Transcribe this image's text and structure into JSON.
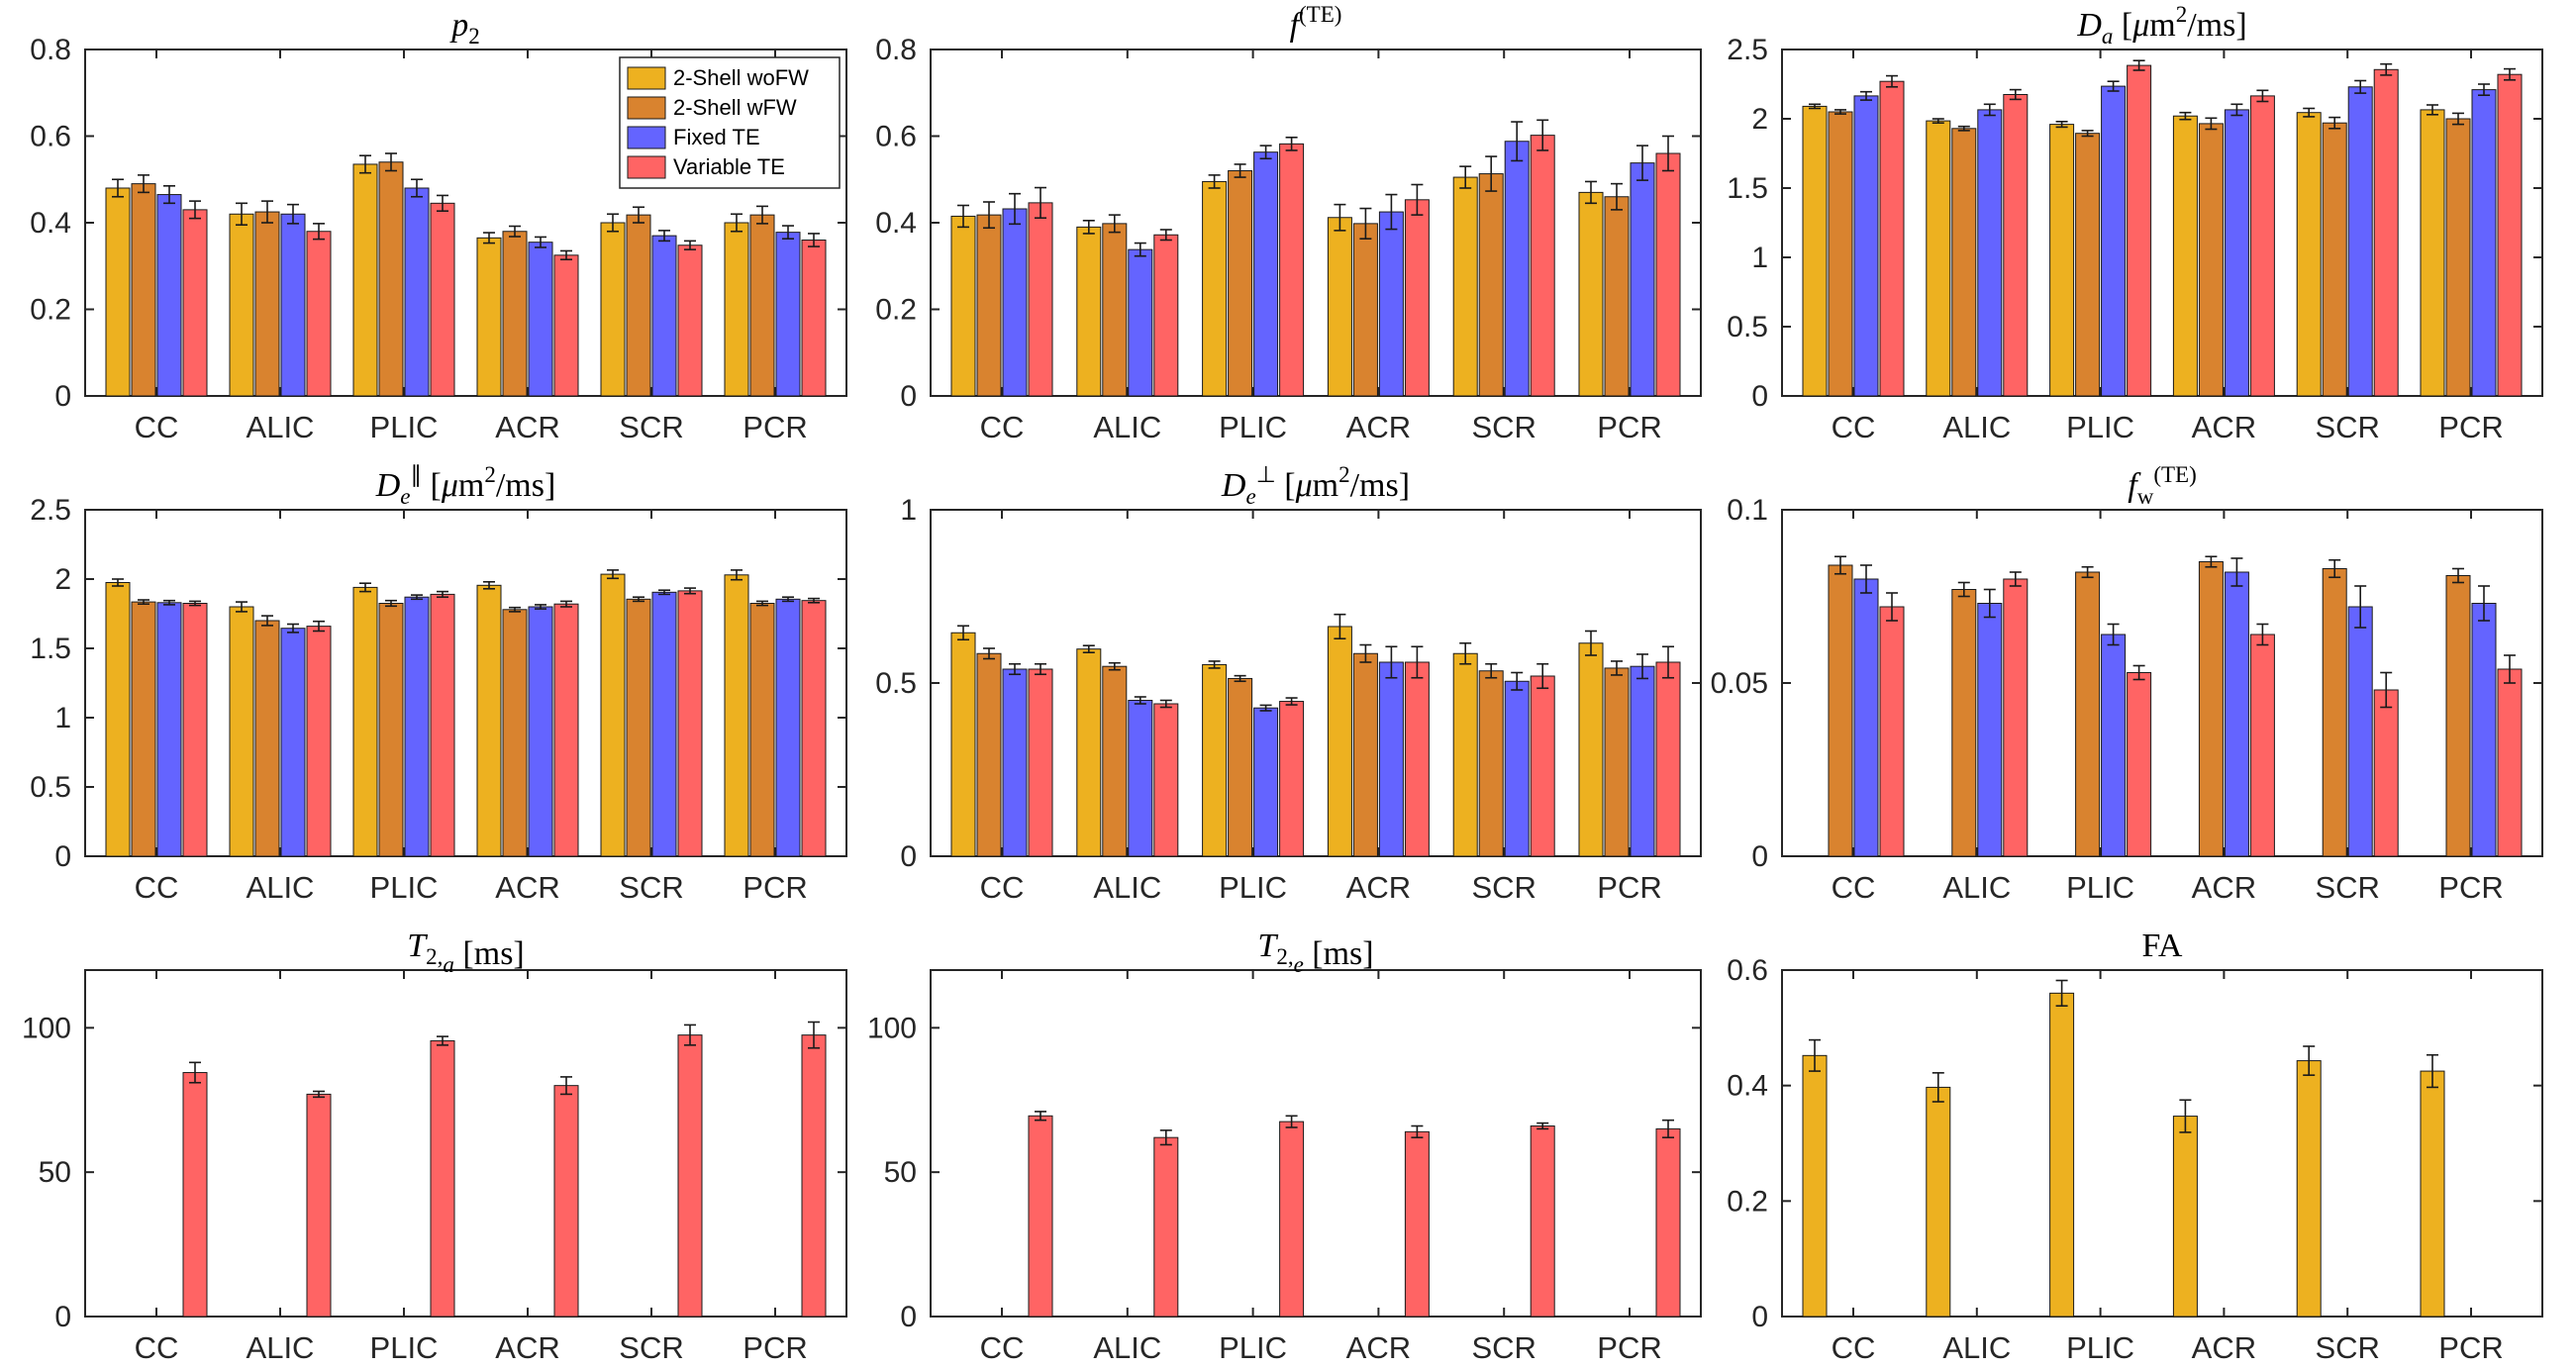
{
  "figure": {
    "layout": "3x3 grid of grouped bar charts"
  },
  "legend": {
    "placement": "top-right of first panel",
    "entries": [
      {
        "label": "2-Shell woFW",
        "color": "#EDB120"
      },
      {
        "label": "2-Shell wFW",
        "color": "#D9832F"
      },
      {
        "label": "Fixed TE",
        "color": "#6464FF"
      },
      {
        "label": "Variable TE",
        "color": "#FF6464"
      }
    ]
  },
  "chart_data": [
    {
      "type": "bar",
      "id": "p2",
      "title": [
        {
          "t": "p",
          "style": "it"
        },
        {
          "t": "2",
          "style": "sub"
        }
      ],
      "categories": [
        "CC",
        "ALIC",
        "PLIC",
        "ACR",
        "SCR",
        "PCR"
      ],
      "ylim": [
        0,
        0.8
      ],
      "yticks": [
        0,
        0.2,
        0.4,
        0.6,
        0.8
      ],
      "ytick_labels": [
        "0",
        "0.2",
        "0.4",
        "0.6",
        "0.8"
      ],
      "series": [
        {
          "name": "2-Shell woFW",
          "color": "#EDB120",
          "values": [
            0.48,
            0.42,
            0.535,
            0.365,
            0.4,
            0.4
          ],
          "errors": [
            0.02,
            0.025,
            0.02,
            0.012,
            0.02,
            0.02
          ]
        },
        {
          "name": "2-Shell wFW",
          "color": "#D9832F",
          "values": [
            0.49,
            0.425,
            0.54,
            0.38,
            0.418,
            0.418
          ],
          "errors": [
            0.02,
            0.025,
            0.02,
            0.012,
            0.018,
            0.02
          ]
        },
        {
          "name": "Fixed TE",
          "color": "#6464FF",
          "values": [
            0.465,
            0.42,
            0.48,
            0.355,
            0.37,
            0.378
          ],
          "errors": [
            0.02,
            0.022,
            0.02,
            0.012,
            0.012,
            0.015
          ]
        },
        {
          "name": "Variable TE",
          "color": "#FF6464",
          "values": [
            0.43,
            0.38,
            0.445,
            0.325,
            0.348,
            0.36
          ],
          "errors": [
            0.02,
            0.018,
            0.018,
            0.01,
            0.01,
            0.015
          ]
        }
      ]
    },
    {
      "type": "bar",
      "id": "fTE",
      "title": [
        {
          "t": "f",
          "style": "it"
        },
        {
          "t": "(TE)",
          "style": "sup"
        }
      ],
      "categories": [
        "CC",
        "ALIC",
        "PLIC",
        "ACR",
        "SCR",
        "PCR"
      ],
      "ylim": [
        0,
        0.8
      ],
      "yticks": [
        0,
        0.2,
        0.4,
        0.6,
        0.8
      ],
      "ytick_labels": [
        "0",
        "0.2",
        "0.4",
        "0.6",
        "0.8"
      ],
      "series": [
        {
          "name": "2-Shell woFW",
          "color": "#EDB120",
          "values": [
            0.415,
            0.39,
            0.495,
            0.412,
            0.505,
            0.47
          ],
          "errors": [
            0.025,
            0.015,
            0.015,
            0.03,
            0.025,
            0.025
          ]
        },
        {
          "name": "2-Shell wFW",
          "color": "#D9832F",
          "values": [
            0.418,
            0.398,
            0.52,
            0.398,
            0.513,
            0.46
          ],
          "errors": [
            0.03,
            0.02,
            0.015,
            0.035,
            0.04,
            0.03
          ]
        },
        {
          "name": "Fixed TE",
          "color": "#6464FF",
          "values": [
            0.432,
            0.338,
            0.563,
            0.425,
            0.588,
            0.538
          ],
          "errors": [
            0.035,
            0.015,
            0.015,
            0.04,
            0.045,
            0.04
          ]
        },
        {
          "name": "Variable TE",
          "color": "#FF6464",
          "values": [
            0.446,
            0.372,
            0.582,
            0.453,
            0.602,
            0.56
          ],
          "errors": [
            0.035,
            0.012,
            0.015,
            0.035,
            0.035,
            0.04
          ]
        }
      ]
    },
    {
      "type": "bar",
      "id": "Da",
      "title": [
        {
          "t": "D",
          "style": "it"
        },
        {
          "t": "a",
          "style": "subit"
        },
        {
          "t": " [",
          "style": "rm"
        },
        {
          "t": "μ",
          "style": "it"
        },
        {
          "t": "m",
          "style": "rm"
        },
        {
          "t": "2",
          "style": "sup"
        },
        {
          "t": "/ms]",
          "style": "rm"
        }
      ],
      "categories": [
        "CC",
        "ALIC",
        "PLIC",
        "ACR",
        "SCR",
        "PCR"
      ],
      "ylim": [
        0,
        2.5
      ],
      "yticks": [
        0,
        0.5,
        1,
        1.5,
        2,
        2.5
      ],
      "ytick_labels": [
        "0",
        "0.5",
        "1",
        "1.5",
        "2",
        "2.5"
      ],
      "series": [
        {
          "name": "2-Shell woFW",
          "color": "#EDB120",
          "values": [
            2.09,
            1.985,
            1.96,
            2.02,
            2.045,
            2.065
          ],
          "errors": [
            0.015,
            0.015,
            0.02,
            0.025,
            0.03,
            0.035
          ]
        },
        {
          "name": "2-Shell wFW",
          "color": "#D9832F",
          "values": [
            2.05,
            1.93,
            1.895,
            1.965,
            1.97,
            2.0
          ],
          "errors": [
            0.015,
            0.015,
            0.02,
            0.04,
            0.04,
            0.04
          ]
        },
        {
          "name": "Fixed TE",
          "color": "#6464FF",
          "values": [
            2.165,
            2.065,
            2.235,
            2.065,
            2.23,
            2.21
          ],
          "errors": [
            0.03,
            0.04,
            0.035,
            0.04,
            0.045,
            0.04
          ]
        },
        {
          "name": "Variable TE",
          "color": "#FF6464",
          "values": [
            2.27,
            2.175,
            2.385,
            2.165,
            2.355,
            2.32
          ],
          "errors": [
            0.04,
            0.035,
            0.035,
            0.04,
            0.04,
            0.04
          ]
        }
      ]
    },
    {
      "type": "bar",
      "id": "De_par",
      "title": [
        {
          "t": "D",
          "style": "it"
        },
        {
          "t": "e",
          "style": "subit"
        },
        {
          "t": "∥",
          "style": "sup"
        },
        {
          "t": " [",
          "style": "rm"
        },
        {
          "t": "μ",
          "style": "it"
        },
        {
          "t": "m",
          "style": "rm"
        },
        {
          "t": "2",
          "style": "sup"
        },
        {
          "t": "/ms]",
          "style": "rm"
        }
      ],
      "categories": [
        "CC",
        "ALIC",
        "PLIC",
        "ACR",
        "SCR",
        "PCR"
      ],
      "ylim": [
        0,
        2.5
      ],
      "yticks": [
        0,
        0.5,
        1,
        1.5,
        2,
        2.5
      ],
      "ytick_labels": [
        "0",
        "0.5",
        "1",
        "1.5",
        "2",
        "2.5"
      ],
      "series": [
        {
          "name": "2-Shell woFW",
          "color": "#EDB120",
          "values": [
            1.975,
            1.8,
            1.94,
            1.955,
            2.035,
            2.03
          ],
          "errors": [
            0.025,
            0.035,
            0.03,
            0.025,
            0.03,
            0.035
          ]
        },
        {
          "name": "2-Shell wFW",
          "color": "#D9832F",
          "values": [
            1.835,
            1.7,
            1.825,
            1.78,
            1.855,
            1.825
          ],
          "errors": [
            0.015,
            0.035,
            0.02,
            0.015,
            0.015,
            0.015
          ]
        },
        {
          "name": "Fixed TE",
          "color": "#6464FF",
          "values": [
            1.83,
            1.645,
            1.87,
            1.8,
            1.905,
            1.855
          ],
          "errors": [
            0.015,
            0.03,
            0.015,
            0.015,
            0.015,
            0.015
          ]
        },
        {
          "name": "Variable TE",
          "color": "#FF6464",
          "values": [
            1.825,
            1.66,
            1.89,
            1.82,
            1.915,
            1.845
          ],
          "errors": [
            0.015,
            0.035,
            0.02,
            0.02,
            0.02,
            0.015
          ]
        }
      ]
    },
    {
      "type": "bar",
      "id": "De_perp",
      "title": [
        {
          "t": "D",
          "style": "it"
        },
        {
          "t": "e",
          "style": "subit"
        },
        {
          "t": "⊥",
          "style": "sup"
        },
        {
          "t": " [",
          "style": "rm"
        },
        {
          "t": "μ",
          "style": "it"
        },
        {
          "t": "m",
          "style": "rm"
        },
        {
          "t": "2",
          "style": "sup"
        },
        {
          "t": "/ms]",
          "style": "rm"
        }
      ],
      "categories": [
        "CC",
        "ALIC",
        "PLIC",
        "ACR",
        "SCR",
        "PCR"
      ],
      "ylim": [
        0,
        1
      ],
      "yticks": [
        0,
        0.5,
        1
      ],
      "ytick_labels": [
        "0",
        "0.5",
        "1"
      ],
      "series": [
        {
          "name": "2-Shell woFW",
          "color": "#EDB120",
          "values": [
            0.645,
            0.598,
            0.553,
            0.663,
            0.585,
            0.615
          ],
          "errors": [
            0.02,
            0.01,
            0.01,
            0.035,
            0.03,
            0.035
          ]
        },
        {
          "name": "2-Shell wFW",
          "color": "#D9832F",
          "values": [
            0.585,
            0.548,
            0.513,
            0.585,
            0.535,
            0.543
          ],
          "errors": [
            0.015,
            0.01,
            0.008,
            0.025,
            0.02,
            0.02
          ]
        },
        {
          "name": "Fixed TE",
          "color": "#6464FF",
          "values": [
            0.54,
            0.45,
            0.428,
            0.56,
            0.505,
            0.548
          ],
          "errors": [
            0.015,
            0.01,
            0.008,
            0.045,
            0.025,
            0.035
          ]
        },
        {
          "name": "Variable TE",
          "color": "#FF6464",
          "values": [
            0.54,
            0.44,
            0.447,
            0.56,
            0.52,
            0.56
          ],
          "errors": [
            0.015,
            0.01,
            0.01,
            0.045,
            0.035,
            0.045
          ]
        }
      ]
    },
    {
      "type": "bar",
      "id": "fw",
      "title": [
        {
          "t": "f",
          "style": "it"
        },
        {
          "t": "w",
          "style": "sub"
        },
        {
          "t": "(TE)",
          "style": "sup"
        }
      ],
      "categories": [
        "CC",
        "ALIC",
        "PLIC",
        "ACR",
        "SCR",
        "PCR"
      ],
      "ylim": [
        0,
        0.1
      ],
      "yticks": [
        0,
        0.05,
        0.1
      ],
      "ytick_labels": [
        "0",
        "0.05",
        "0.1"
      ],
      "series": [
        {
          "name": "2-Shell woFW",
          "color": "#EDB120",
          "values": [
            0,
            0,
            0,
            0,
            0,
            0
          ],
          "errors": [
            0,
            0,
            0,
            0,
            0,
            0
          ]
        },
        {
          "name": "2-Shell wFW",
          "color": "#D9832F",
          "values": [
            0.084,
            0.077,
            0.082,
            0.085,
            0.083,
            0.081
          ],
          "errors": [
            0.0025,
            0.002,
            0.0015,
            0.0015,
            0.0025,
            0.002
          ]
        },
        {
          "name": "Fixed TE",
          "color": "#6464FF",
          "values": [
            0.08,
            0.073,
            0.064,
            0.082,
            0.072,
            0.073
          ],
          "errors": [
            0.004,
            0.004,
            0.003,
            0.004,
            0.006,
            0.005
          ]
        },
        {
          "name": "Variable TE",
          "color": "#FF6464",
          "values": [
            0.072,
            0.08,
            0.053,
            0.064,
            0.048,
            0.054
          ],
          "errors": [
            0.004,
            0.002,
            0.002,
            0.003,
            0.005,
            0.004
          ]
        }
      ]
    },
    {
      "type": "bar",
      "id": "T2a",
      "title": [
        {
          "t": "T",
          "style": "it"
        },
        {
          "t": "2,",
          "style": "sub"
        },
        {
          "t": "a",
          "style": "subit"
        },
        {
          "t": " [ms]",
          "style": "rm"
        }
      ],
      "categories": [
        "CC",
        "ALIC",
        "PLIC",
        "ACR",
        "SCR",
        "PCR"
      ],
      "ylim": [
        0,
        120
      ],
      "yticks": [
        0,
        50,
        100
      ],
      "ytick_labels": [
        "0",
        "50",
        "100"
      ],
      "series": [
        {
          "name": "Variable TE",
          "color": "#FF6464",
          "slot": 3,
          "values": [
            84.5,
            77,
            95.5,
            80,
            97.5,
            97.5
          ],
          "errors": [
            3.5,
            1,
            1.5,
            3,
            3.5,
            4.5
          ]
        }
      ]
    },
    {
      "type": "bar",
      "id": "T2e",
      "title": [
        {
          "t": "T",
          "style": "it"
        },
        {
          "t": "2,",
          "style": "sub"
        },
        {
          "t": "e",
          "style": "subit"
        },
        {
          "t": " [ms]",
          "style": "rm"
        }
      ],
      "categories": [
        "CC",
        "ALIC",
        "PLIC",
        "ACR",
        "SCR",
        "PCR"
      ],
      "ylim": [
        0,
        120
      ],
      "yticks": [
        0,
        50,
        100
      ],
      "ytick_labels": [
        "0",
        "50",
        "100"
      ],
      "series": [
        {
          "name": "Variable TE",
          "color": "#FF6464",
          "slot": 3,
          "values": [
            69.5,
            62,
            67.5,
            64,
            66,
            65
          ],
          "errors": [
            1.5,
            2.5,
            2,
            2,
            1,
            3
          ]
        }
      ]
    },
    {
      "type": "bar",
      "id": "FA",
      "title": [
        {
          "t": "FA",
          "style": "rm"
        }
      ],
      "categories": [
        "CC",
        "ALIC",
        "PLIC",
        "ACR",
        "SCR",
        "PCR"
      ],
      "ylim": [
        0,
        0.6
      ],
      "yticks": [
        0,
        0.2,
        0.4,
        0.6
      ],
      "ytick_labels": [
        "0",
        "0.2",
        "0.4",
        "0.6"
      ],
      "series": [
        {
          "name": "2-Shell woFW",
          "color": "#EDB120",
          "slot": 0,
          "values": [
            0.452,
            0.397,
            0.56,
            0.347,
            0.443,
            0.425
          ],
          "errors": [
            0.027,
            0.025,
            0.022,
            0.028,
            0.025,
            0.028
          ]
        }
      ]
    }
  ]
}
